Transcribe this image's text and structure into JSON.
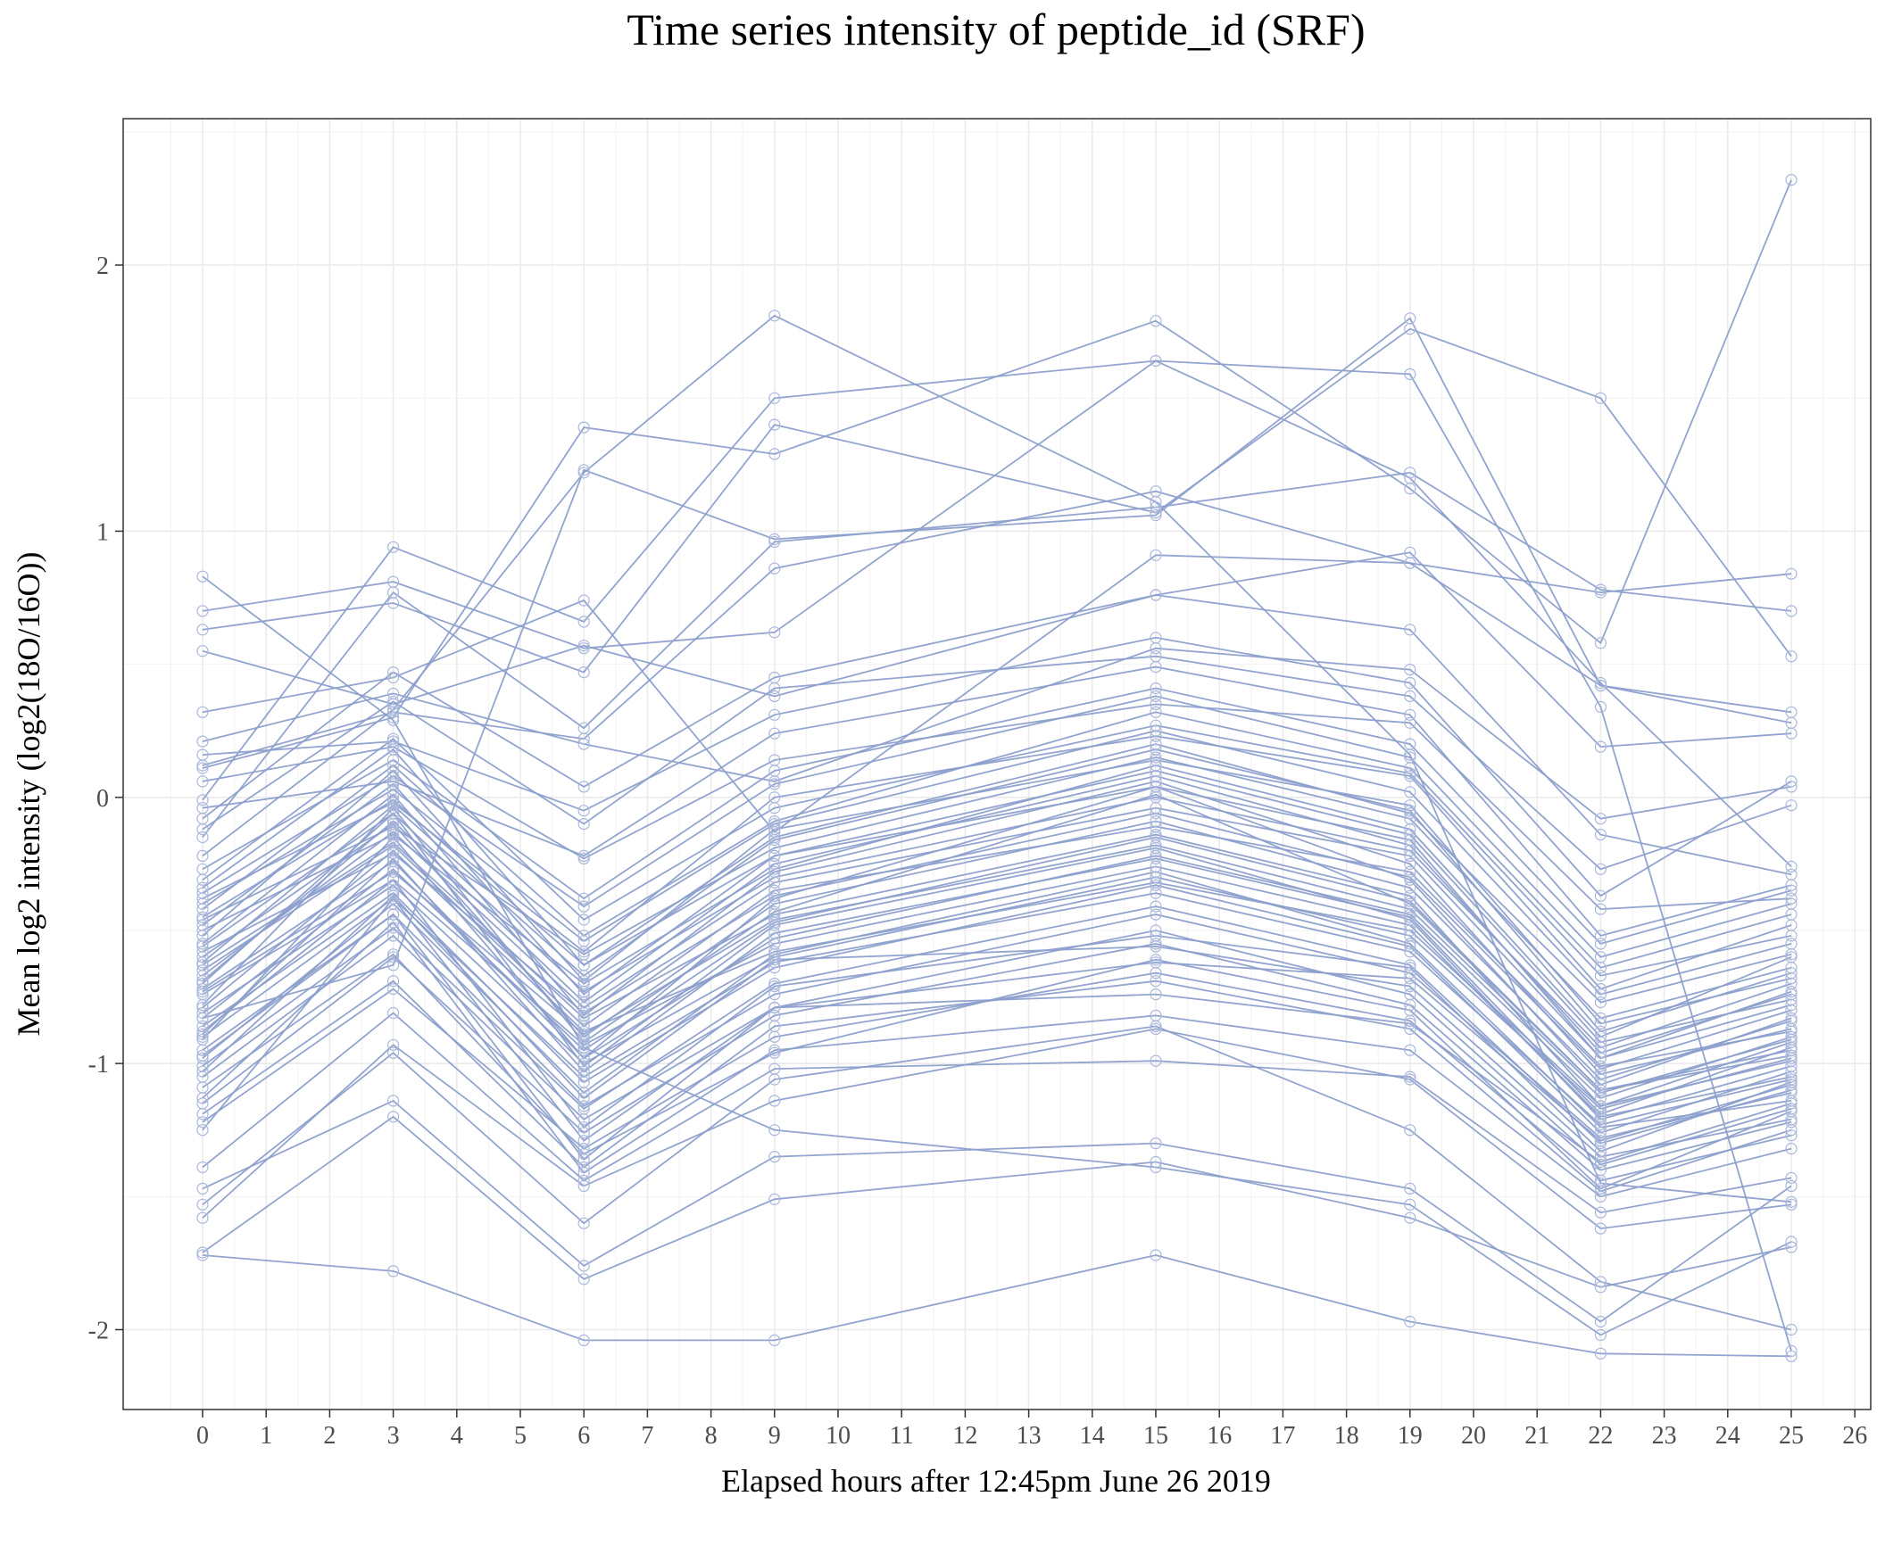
{
  "chart_data": {
    "type": "line",
    "title": "Time series intensity of peptide_id (SRF)",
    "xlabel": "Elapsed hours after 12:45pm June 26 2019",
    "ylabel": "Mean log2 intensity (log2(18O/16O))",
    "x": [
      0,
      3,
      6,
      9,
      15,
      19,
      22,
      25
    ],
    "xlim": [
      -1.25,
      26.25
    ],
    "ylim": [
      -2.3,
      2.55
    ],
    "xticks": [
      0,
      1,
      2,
      3,
      4,
      5,
      6,
      7,
      8,
      9,
      10,
      11,
      12,
      13,
      14,
      15,
      16,
      17,
      18,
      19,
      20,
      21,
      22,
      23,
      24,
      25,
      26
    ],
    "yticks": [
      -2,
      -1,
      0,
      1,
      2
    ],
    "ytick_labels": [
      "-2",
      "-1",
      "0",
      "1",
      "2"
    ],
    "grid": true,
    "legend": "none",
    "colors": {
      "line": "#8c9fcc",
      "point": "#a9b7db"
    },
    "series": [
      {
        "values": [
          -1.72,
          -1.78,
          -2.04,
          -2.04,
          -1.72,
          -1.97,
          -2.09,
          -2.1
        ]
      },
      {
        "values": [
          -1.71,
          -1.2,
          -1.81,
          -1.51,
          -1.37,
          -1.58,
          -1.84,
          -1.69
        ]
      },
      {
        "values": [
          -1.47,
          -1.14,
          -1.76,
          -1.35,
          -1.3,
          -1.47,
          -1.97,
          -1.46
        ]
      },
      {
        "values": [
          0.83,
          0.29,
          -0.94,
          -1.25,
          -1.39,
          -1.53,
          -2.02,
          -1.67
        ]
      },
      {
        "values": [
          -1.53,
          -0.96,
          -1.6,
          -1.06,
          -0.86,
          -1.25,
          -1.82,
          -2.0
        ]
      },
      {
        "values": [
          -0.22,
          0.33,
          1.22,
          1.81,
          1.11,
          0.16,
          -1.45,
          -1.52
        ]
      },
      {
        "values": [
          0.7,
          0.81,
          0.56,
          0.62,
          1.64,
          1.2,
          0.43,
          -0.26
        ]
      },
      {
        "values": [
          -0.01,
          0.94,
          0.66,
          1.5,
          1.64,
          1.59,
          0.34,
          -2.08
        ]
      },
      {
        "values": [
          0.11,
          0.3,
          1.39,
          1.29,
          1.79,
          1.16,
          0.58,
          2.32
        ]
      },
      {
        "values": [
          -0.15,
          0.77,
          0.26,
          0.96,
          1.09,
          1.22,
          0.78,
          0.7
        ]
      },
      {
        "values": [
          0.12,
          0.32,
          0.22,
          0.86,
          1.15,
          0.88,
          0.77,
          0.84
        ]
      },
      {
        "values": [
          0.63,
          0.73,
          0.47,
          1.4,
          1.07,
          1.76,
          1.5,
          0.53
        ]
      },
      {
        "values": [
          -0.83,
          -0.63,
          1.23,
          0.97,
          1.06,
          1.8,
          0.42,
          0.28
        ]
      },
      {
        "values": [
          0.55,
          0.35,
          0.57,
          0.38,
          0.76,
          0.92,
          0.19,
          0.24
        ]
      },
      {
        "values": [
          0.32,
          0.45,
          0.74,
          -0.13,
          0.91,
          0.88,
          0.42,
          0.32
        ]
      },
      {
        "values": [
          0.21,
          0.39,
          0.2,
          0.06,
          0.56,
          0.48,
          -0.08,
          0.04
        ]
      },
      {
        "values": [
          -0.08,
          0.47,
          0.04,
          0.45,
          0.76,
          0.63,
          -0.14,
          -0.29
        ]
      },
      {
        "values": [
          0.16,
          0.21,
          -0.05,
          0.31,
          0.6,
          0.43,
          -0.37,
          0.06
        ]
      },
      {
        "values": [
          -0.12,
          0.36,
          -0.1,
          0.41,
          0.53,
          0.38,
          -0.27,
          -0.03
        ]
      },
      {
        "values": [
          -0.97,
          -0.44,
          -1.36,
          -0.79,
          -0.74,
          -0.85,
          -1.37,
          -1.15
        ]
      },
      {
        "values": [
          -1.13,
          -0.47,
          -1.41,
          -0.95,
          -0.82,
          -0.95,
          -1.5,
          -1.32
        ]
      },
      {
        "values": [
          -1.39,
          -0.81,
          -1.44,
          -1.02,
          -0.99,
          -1.05,
          -1.56,
          -1.43
        ]
      },
      {
        "values": [
          -1.58,
          -0.93,
          -1.46,
          -1.14,
          -0.87,
          -1.06,
          -1.62,
          -1.53
        ]
      },
      {
        "values": [
          0.06,
          0.19,
          -0.23,
          0.14,
          0.35,
          0.28,
          -0.42,
          -0.38
        ]
      },
      {
        "values": [
          -0.04,
          0.06,
          -0.22,
          0.24,
          0.49,
          0.31,
          -0.52,
          -0.33
        ]
      },
      {
        "values": [
          -1.25,
          -0.38,
          -1.29,
          -0.79,
          -0.62,
          -0.68,
          -1.29,
          -1.08
        ]
      },
      {
        "values": [
          -1.03,
          -0.37,
          -1.13,
          -0.61,
          -0.56,
          -0.71,
          -1.35,
          -1.21
        ]
      },
      {
        "values": [
          -1.09,
          -0.59,
          -1.34,
          -0.96,
          -0.61,
          -0.8,
          -1.47,
          -1.18
        ]
      },
      {
        "values": [
          -1.19,
          -0.69,
          -1.39,
          -0.86,
          -0.69,
          -0.87,
          -1.48,
          -1.25
        ]
      },
      {
        "values": [
          -0.88,
          -0.31,
          -1.24,
          -0.71,
          -0.52,
          -0.64,
          -1.33,
          -1.07
        ]
      },
      {
        "values": [
          -0.34,
          0.18,
          -0.63,
          -0.22,
          0.04,
          -0.16,
          -0.98,
          -0.73
        ]
      },
      {
        "values": [
          -0.55,
          0.01,
          -0.82,
          -0.28,
          0.06,
          -0.25,
          -1.04,
          -0.87
        ]
      },
      {
        "values": [
          -0.63,
          -0.17,
          -0.83,
          -0.44,
          -0.14,
          -0.37,
          -1.16,
          -0.92
        ]
      },
      {
        "values": [
          -0.7,
          -0.06,
          -1.01,
          -0.48,
          -0.19,
          -0.46,
          -1.21,
          -1.01
        ]
      },
      {
        "values": [
          -0.79,
          -0.2,
          -0.88,
          -0.58,
          -0.32,
          -0.5,
          -1.16,
          -0.99
        ]
      },
      {
        "values": [
          -0.48,
          0.05,
          -0.74,
          -0.22,
          0.1,
          -0.14,
          -0.92,
          -0.76
        ]
      },
      {
        "values": [
          -0.6,
          -0.1,
          -0.9,
          -0.4,
          -0.09,
          -0.34,
          -1.06,
          -0.84
        ]
      },
      {
        "values": [
          -0.72,
          -0.24,
          -0.98,
          -0.53,
          -0.22,
          -0.44,
          -1.13,
          -0.9
        ]
      },
      {
        "values": [
          -0.86,
          -0.36,
          -1.07,
          -0.64,
          -0.33,
          -0.56,
          -1.26,
          -1.03
        ]
      },
      {
        "values": [
          -0.95,
          -0.44,
          -1.16,
          -0.74,
          -0.44,
          -0.66,
          -1.28,
          -1.11
        ]
      },
      {
        "values": [
          -0.45,
          -0.01,
          -0.63,
          -0.15,
          0.2,
          -0.06,
          -0.77,
          -0.59
        ]
      },
      {
        "values": [
          -0.38,
          -0.02,
          -0.58,
          0.0,
          0.23,
          0.08,
          -0.72,
          -0.48
        ]
      },
      {
        "values": [
          -0.52,
          0.1,
          -0.69,
          -0.12,
          0.14,
          -0.03,
          -0.85,
          -0.68
        ]
      },
      {
        "values": [
          -0.67,
          -0.13,
          -0.79,
          -0.32,
          -0.04,
          -0.22,
          -0.98,
          -0.78
        ]
      },
      {
        "values": [
          -0.83,
          -0.27,
          -0.95,
          -0.47,
          -0.15,
          -0.39,
          -1.1,
          -0.95
        ]
      },
      {
        "values": [
          -0.31,
          0.22,
          -0.46,
          -0.04,
          0.27,
          0.09,
          -0.67,
          -0.52
        ]
      },
      {
        "values": [
          -0.56,
          -0.06,
          -0.73,
          -0.3,
          0.0,
          -0.2,
          -0.94,
          -0.7
        ]
      },
      {
        "values": [
          -0.74,
          -0.31,
          -0.93,
          -0.55,
          -0.26,
          -0.48,
          -1.2,
          -1.05
        ]
      },
      {
        "values": [
          -0.91,
          -0.15,
          -0.98,
          -0.38,
          0.04,
          -0.31,
          -1.08,
          -0.83
        ]
      },
      {
        "values": [
          -1.05,
          -0.52,
          -1.21,
          -0.79,
          -0.5,
          -0.74,
          -1.38,
          -1.17
        ]
      },
      {
        "values": [
          -0.42,
          0.12,
          -0.52,
          -0.09,
          0.32,
          0.11,
          -0.64,
          -0.44
        ]
      },
      {
        "values": [
          -0.65,
          -0.18,
          -0.86,
          -0.35,
          -0.11,
          -0.28,
          -1.01,
          -0.88
        ]
      },
      {
        "values": [
          -0.78,
          -0.04,
          -0.92,
          -0.43,
          0.01,
          -0.4,
          -1.1,
          -0.97
        ]
      },
      {
        "values": [
          -0.5,
          -0.14,
          -0.7,
          -0.27,
          0.12,
          -0.12,
          -0.9,
          -0.6
        ]
      },
      {
        "values": [
          -0.98,
          -0.4,
          -1.11,
          -0.59,
          -0.28,
          -0.55,
          -1.24,
          -1.14
        ]
      },
      {
        "values": [
          -0.36,
          0.08,
          -0.41,
          0.05,
          0.38,
          0.15,
          -0.6,
          -0.4
        ]
      },
      {
        "values": [
          -0.89,
          -0.23,
          -1.03,
          -0.51,
          -0.23,
          -0.45,
          -1.19,
          -0.94
        ]
      },
      {
        "values": [
          -0.69,
          -0.09,
          -0.77,
          -0.25,
          0.08,
          -0.18,
          -0.96,
          -0.74
        ]
      },
      {
        "values": [
          -1.15,
          -0.6,
          -1.26,
          -0.82,
          -0.55,
          -0.78,
          -1.4,
          -1.22
        ]
      },
      {
        "values": [
          -0.58,
          -0.21,
          -0.81,
          -0.37,
          -0.06,
          -0.3,
          -1.02,
          -0.8
        ]
      },
      {
        "values": [
          -0.27,
          0.14,
          -0.38,
          0.1,
          0.41,
          0.2,
          -0.55,
          -0.35
        ]
      },
      {
        "values": [
          -0.81,
          -0.33,
          -1.0,
          -0.6,
          -0.3,
          -0.52,
          -1.17,
          -0.98
        ]
      },
      {
        "values": [
          -1.22,
          -0.72,
          -1.32,
          -0.9,
          -0.66,
          -0.84,
          -1.44,
          -1.27
        ]
      },
      {
        "values": [
          -0.46,
          -0.11,
          -0.59,
          -0.19,
          0.15,
          -0.08,
          -0.83,
          -0.64
        ]
      },
      {
        "values": [
          -0.73,
          -0.28,
          -0.89,
          -0.46,
          -0.18,
          -0.42,
          -1.11,
          -0.91
        ]
      },
      {
        "values": [
          -1.01,
          -0.49,
          -1.17,
          -0.7,
          -0.41,
          -0.63,
          -1.3,
          -1.1
        ]
      },
      {
        "values": [
          -0.62,
          -0.03,
          -0.67,
          -0.16,
          0.18,
          -0.05,
          -0.88,
          -0.66
        ]
      },
      {
        "values": [
          -0.9,
          -0.38,
          -1.05,
          -0.62,
          -0.36,
          -0.58,
          -1.23,
          -1.06
        ]
      },
      {
        "values": [
          -0.4,
          0.03,
          -0.54,
          -0.1,
          0.25,
          0.02,
          -0.74,
          -0.55
        ]
      }
    ]
  }
}
